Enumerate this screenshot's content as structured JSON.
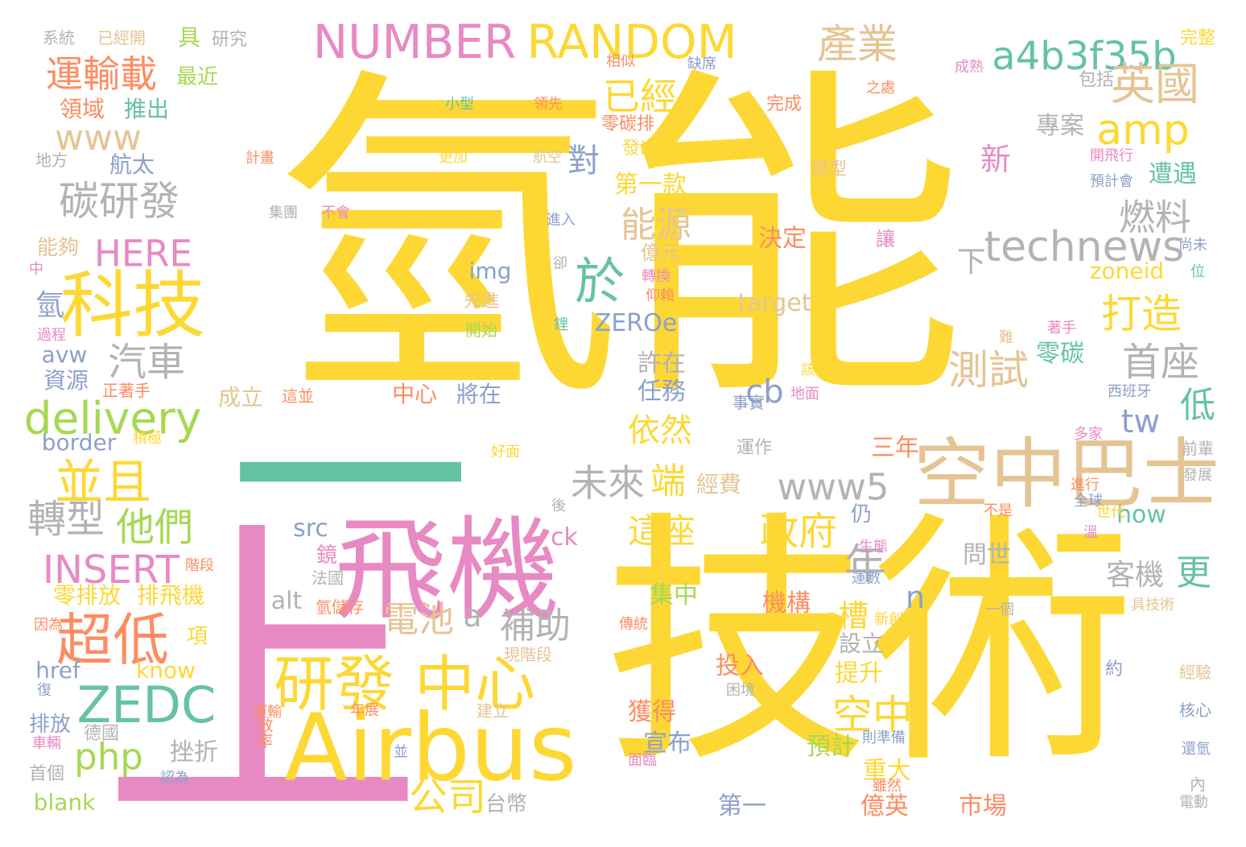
{
  "palette": {
    "yellow": "#FDD835",
    "pink": "#E78AC3",
    "green": "#66C2A5",
    "orange": "#FC8D62",
    "blue": "#8DA0CB",
    "lime": "#A6D854",
    "tan": "#E5C494",
    "gray": "#B3B3B3"
  },
  "words": [
    {
      "text": "氫能",
      "color": "#FDD835"
    },
    {
      "text": "技術",
      "color": "#FDD835"
    },
    {
      "text": "上",
      "color": "#E78AC3"
    },
    {
      "text": "一",
      "color": "#66C2A5"
    },
    {
      "text": "飛機",
      "color": "#E78AC3"
    },
    {
      "text": "Airbus",
      "color": "#FDD835"
    },
    {
      "text": "空中巴士",
      "color": "#E5C494"
    },
    {
      "text": "科技",
      "color": "#FDD835"
    },
    {
      "text": "研發",
      "color": "#FDD835"
    },
    {
      "text": "中心",
      "color": "#FDD835"
    },
    {
      "text": "NUMBER",
      "color": "#E78AC3"
    },
    {
      "text": "RANDOM",
      "color": "#FDD835"
    },
    {
      "text": "technews",
      "color": "#B3B3B3"
    },
    {
      "text": "ZEDC",
      "color": "#66C2A5"
    },
    {
      "text": "delivery",
      "color": "#A6D854"
    },
    {
      "text": "a4b3f35b",
      "color": "#66C2A5"
    },
    {
      "text": "amp",
      "color": "#FDD835"
    },
    {
      "text": "於",
      "color": "#66C2A5"
    },
    {
      "text": "超低",
      "color": "#FC8D62"
    },
    {
      "text": "並且",
      "color": "#FDD835"
    },
    {
      "text": "年",
      "color": "#B3B3B3"
    },
    {
      "text": "www5",
      "color": "#B3B3B3"
    },
    {
      "text": "英國",
      "color": "#E5C494"
    },
    {
      "text": "產業",
      "color": "#E5C494"
    },
    {
      "text": "已經",
      "color": "#FDD835"
    },
    {
      "text": "運輸載",
      "color": "#FC8D62"
    },
    {
      "text": "碳研發",
      "color": "#B3B3B3"
    },
    {
      "text": "HERE",
      "color": "#E78AC3"
    },
    {
      "text": "INSERT",
      "color": "#E78AC3"
    },
    {
      "text": "php",
      "color": "#A6D854"
    },
    {
      "text": "公司",
      "color": "#FDD835"
    },
    {
      "text": "空中",
      "color": "#FDD835"
    },
    {
      "text": "政府",
      "color": "#FDD835"
    },
    {
      "text": "他們",
      "color": "#A6D854"
    },
    {
      "text": "轉型",
      "color": "#B3B3B3"
    },
    {
      "text": "汽車",
      "color": "#B3B3B3"
    },
    {
      "text": "燃料",
      "color": "#B3B3B3"
    },
    {
      "text": "打造",
      "color": "#FDD835"
    },
    {
      "text": "測試",
      "color": "#E5C494"
    },
    {
      "text": "首座",
      "color": "#B3B3B3"
    },
    {
      "text": "能源",
      "color": "#E5C494"
    },
    {
      "text": "電池",
      "color": "#E5C494"
    },
    {
      "text": "補助",
      "color": "#B3B3B3"
    },
    {
      "text": "未來",
      "color": "#B3B3B3"
    },
    {
      "text": "端",
      "color": "#FDD835"
    },
    {
      "text": "這座",
      "color": "#FDD835"
    },
    {
      "text": "依然",
      "color": "#FDD835"
    },
    {
      "text": "cb",
      "color": "#8DA0CB"
    },
    {
      "text": "tw",
      "color": "#8DA0CB"
    },
    {
      "text": "低",
      "color": "#66C2A5"
    },
    {
      "text": "更",
      "color": "#66C2A5"
    },
    {
      "text": "新",
      "color": "#E78AC3"
    },
    {
      "text": "對",
      "color": "#8DA0CB"
    },
    {
      "text": "下",
      "color": "#B3B3B3"
    },
    {
      "text": "槽",
      "color": "#FDD835"
    },
    {
      "text": "n",
      "color": "#8DA0CB"
    },
    {
      "text": "a",
      "color": "#B3B3B3"
    },
    {
      "text": "www",
      "color": "#E5C494"
    },
    {
      "text": "氫",
      "color": "#8DA0CB"
    },
    {
      "text": "零排放",
      "color": "#FDD835"
    },
    {
      "text": "排飛機",
      "color": "#FDD835"
    },
    {
      "text": "客機",
      "color": "#B3B3B3"
    },
    {
      "text": "第一款",
      "color": "#FDD835"
    },
    {
      "text": "專案",
      "color": "#B3B3B3"
    },
    {
      "text": "零碳",
      "color": "#66C2A5"
    },
    {
      "text": "遭遇",
      "color": "#66C2A5"
    },
    {
      "text": "zoneid",
      "color": "#FDD835"
    },
    {
      "text": "target",
      "color": "#E5C494"
    },
    {
      "text": "ZEROe",
      "color": "#8DA0CB"
    },
    {
      "text": "img",
      "color": "#8DA0CB"
    },
    {
      "text": "決定",
      "color": "#FC8D62"
    },
    {
      "text": "許在",
      "color": "#B3B3B3"
    },
    {
      "text": "任務",
      "color": "#8DA0CB"
    },
    {
      "text": "成立",
      "color": "#E5C494"
    },
    {
      "text": "中心",
      "color": "#FC8D62"
    },
    {
      "text": "將在",
      "color": "#8DA0CB"
    },
    {
      "text": "三年",
      "color": "#FC8D62"
    },
    {
      "text": "經費",
      "color": "#E5C494"
    },
    {
      "text": "集中",
      "color": "#A6D854"
    },
    {
      "text": "機構",
      "color": "#FC8D62"
    },
    {
      "text": "設立",
      "color": "#B3B3B3"
    },
    {
      "text": "提升",
      "color": "#FDD835"
    },
    {
      "text": "問世",
      "color": "#B3B3B3"
    },
    {
      "text": "投入",
      "color": "#FC8D62"
    },
    {
      "text": "獲得",
      "color": "#FC8D62"
    },
    {
      "text": "宣布",
      "color": "#8DA0CB"
    },
    {
      "text": "預計",
      "color": "#A6D854"
    },
    {
      "text": "重大",
      "color": "#FDD835"
    },
    {
      "text": "市場",
      "color": "#FC8D62"
    },
    {
      "text": "億英",
      "color": "#FC8D62"
    },
    {
      "text": "第一",
      "color": "#8DA0CB"
    },
    {
      "text": "挫折",
      "color": "#B3B3B3"
    },
    {
      "text": "台幣",
      "color": "#B3B3B3"
    },
    {
      "text": "src",
      "color": "#8DA0CB"
    },
    {
      "text": "ck",
      "color": "#E78AC3"
    },
    {
      "text": "alt",
      "color": "#B3B3B3"
    },
    {
      "text": "how",
      "color": "#66C2A5"
    },
    {
      "text": "know",
      "color": "#FDD835"
    },
    {
      "text": "href",
      "color": "#8DA0CB"
    },
    {
      "text": "avw",
      "color": "#8DA0CB"
    },
    {
      "text": "border",
      "color": "#8DA0CB"
    },
    {
      "text": "blank",
      "color": "#A6D854"
    },
    {
      "text": "資源",
      "color": "#8DA0CB"
    },
    {
      "text": "領域",
      "color": "#FC8D62"
    },
    {
      "text": "推出",
      "color": "#66C2A5"
    },
    {
      "text": "最近",
      "color": "#A6D854"
    },
    {
      "text": "航太",
      "color": "#8DA0CB"
    },
    {
      "text": "能夠",
      "color": "#E5C494"
    },
    {
      "text": "具",
      "color": "#A6D854"
    },
    {
      "text": "研究",
      "color": "#B3B3B3"
    },
    {
      "text": "系統",
      "color": "#B3B3B3"
    },
    {
      "text": "已經開",
      "color": "#E5C494"
    },
    {
      "text": "地方",
      "color": "#B3B3B3"
    },
    {
      "text": "排放",
      "color": "#8DA0CB"
    },
    {
      "text": "德國",
      "color": "#B3B3B3"
    },
    {
      "text": "首個",
      "color": "#B3B3B3"
    },
    {
      "text": "項",
      "color": "#FDD835"
    },
    {
      "text": "鏡",
      "color": "#E78AC3"
    },
    {
      "text": "仍",
      "color": "#8DA0CB"
    },
    {
      "text": "零碳排",
      "color": "#FC8D62"
    },
    {
      "text": "完成",
      "color": "#FC8D62"
    },
    {
      "text": "發出",
      "color": "#FDD835"
    },
    {
      "text": "原型",
      "color": "#E5C494"
    },
    {
      "text": "包括",
      "color": "#B3B3B3"
    },
    {
      "text": "完整",
      "color": "#FDD835"
    },
    {
      "text": "讓",
      "color": "#E78AC3"
    },
    {
      "text": "億元",
      "color": "#E5C494"
    },
    {
      "text": "先進",
      "color": "#E5C494"
    },
    {
      "text": "開始",
      "color": "#A6D854"
    },
    {
      "text": "運作",
      "color": "#B3B3B3"
    },
    {
      "text": "事實",
      "color": "#8DA0CB"
    },
    {
      "text": "西班牙",
      "color": "#8DA0CB"
    },
    {
      "text": "前輩",
      "color": "#B3B3B3"
    },
    {
      "text": "發展",
      "color": "#B3B3B3"
    },
    {
      "text": "具技術",
      "color": "#E5C494"
    },
    {
      "text": "一個",
      "color": "#B3B3B3"
    },
    {
      "text": "約",
      "color": "#8DA0CB"
    },
    {
      "text": "經驗",
      "color": "#E5C494"
    },
    {
      "text": "核心",
      "color": "#8DA0CB"
    },
    {
      "text": "內",
      "color": "#B3B3B3"
    },
    {
      "text": "建立",
      "color": "#E5C494"
    },
    {
      "text": "現階段",
      "color": "#E5C494"
    },
    {
      "text": "法國",
      "color": "#B3B3B3"
    },
    {
      "text": "氫儲存",
      "color": "#FC8D62"
    },
    {
      "text": "效率",
      "color": "#FC8D62"
    },
    {
      "text": "困境",
      "color": "#B3B3B3"
    },
    {
      "text": "面臨",
      "color": "#E78AC3"
    },
    {
      "text": "好面",
      "color": "#FDD835"
    },
    {
      "text": "這並",
      "color": "#FC8D62"
    },
    {
      "text": "正著手",
      "color": "#FC8D62"
    },
    {
      "text": "積極",
      "color": "#FDD835"
    },
    {
      "text": "過程",
      "color": "#E78AC3"
    },
    {
      "text": "因為",
      "color": "#FC8D62"
    },
    {
      "text": "車輛",
      "color": "#E78AC3"
    },
    {
      "text": "認為",
      "color": "#8DA0CB"
    },
    {
      "text": "小型",
      "color": "#66C2A5"
    },
    {
      "text": "領先",
      "color": "#FC8D62"
    },
    {
      "text": "相似",
      "color": "#FC8D62"
    },
    {
      "text": "缺席",
      "color": "#8DA0CB"
    },
    {
      "text": "成熟",
      "color": "#E78AC3"
    },
    {
      "text": "之處",
      "color": "#FC8D62"
    },
    {
      "text": "計畫",
      "color": "#FC8D62"
    },
    {
      "text": "更加",
      "color": "#FDD835"
    },
    {
      "text": "航空",
      "color": "#E5C494"
    },
    {
      "text": "開飛行",
      "color": "#E78AC3"
    },
    {
      "text": "預計會",
      "color": "#8DA0CB"
    },
    {
      "text": "集團",
      "color": "#B3B3B3"
    },
    {
      "text": "不會",
      "color": "#E78AC3"
    },
    {
      "text": "進入",
      "color": "#8DA0CB"
    },
    {
      "text": "尚未",
      "color": "#8DA0CB"
    },
    {
      "text": "中",
      "color": "#E78AC3"
    },
    {
      "text": "卻",
      "color": "#B3B3B3"
    },
    {
      "text": "轉換",
      "color": "#E78AC3"
    },
    {
      "text": "仰賴",
      "color": "#FC8D62"
    },
    {
      "text": "鋰",
      "color": "#66C2A5"
    },
    {
      "text": "位",
      "color": "#66C2A5"
    },
    {
      "text": "著手",
      "color": "#E78AC3"
    },
    {
      "text": "難",
      "color": "#E5C494"
    },
    {
      "text": "該",
      "color": "#FDD835"
    },
    {
      "text": "地面",
      "color": "#E78AC3"
    },
    {
      "text": "多家",
      "color": "#E78AC3"
    },
    {
      "text": "進行",
      "color": "#FC8D62"
    },
    {
      "text": "全球",
      "color": "#8DA0CB"
    },
    {
      "text": "不是",
      "color": "#FC8D62"
    },
    {
      "text": "世代",
      "color": "#FDD835"
    },
    {
      "text": "溫",
      "color": "#E78AC3"
    },
    {
      "text": "生態",
      "color": "#E78AC3"
    },
    {
      "text": "階段",
      "color": "#FC8D62"
    },
    {
      "text": "後",
      "color": "#B3B3B3"
    },
    {
      "text": "運數",
      "color": "#8DA0CB"
    },
    {
      "text": "傳統",
      "color": "#FC8D62"
    },
    {
      "text": "新創",
      "color": "#FDD835"
    },
    {
      "text": "運輸",
      "color": "#FC8D62"
    },
    {
      "text": "年展",
      "color": "#FC8D62"
    },
    {
      "text": "則準備",
      "color": "#8DA0CB"
    },
    {
      "text": "並",
      "color": "#8DA0CB"
    },
    {
      "text": "雖然",
      "color": "#FC8D62"
    },
    {
      "text": "還氫",
      "color": "#8DA0CB"
    },
    {
      "text": "電動",
      "color": "#B3B3B3"
    },
    {
      "text": "復",
      "color": "#8DA0CB"
    }
  ]
}
